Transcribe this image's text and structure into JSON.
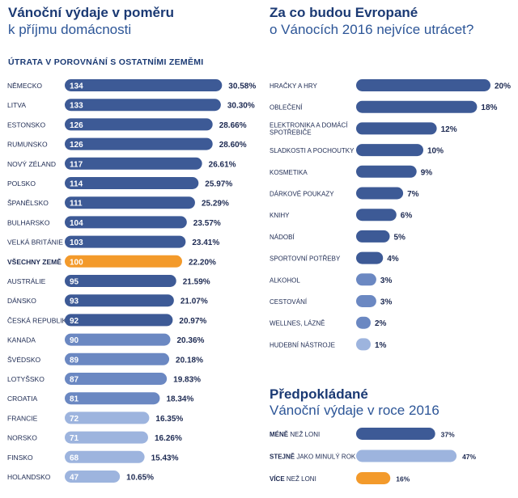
{
  "left": {
    "title_bold": "Vánoční výdaje v poměru",
    "title_light": "k příjmu domácnosti",
    "subheading": "ÚTRATA V POROVNÁNÍ S OSTATNÍMI ZEMĚMI"
  },
  "right_top": {
    "title_bold": "Za co budou Evropané",
    "title_light": "o Vánocích 2016 nejvíce utrácet?"
  },
  "right_bottom": {
    "title_bold": "Předpokládané",
    "title_light": "Vánoční výdaje v roce 2016"
  },
  "colors": {
    "dark_blue": "#3d5a96",
    "mid_blue": "#6b88c2",
    "light_blue": "#9db4de",
    "highlight": "#f39a2b",
    "title": "#1b3a74"
  },
  "chart_data": [
    {
      "type": "bar",
      "orientation": "horizontal",
      "title": "Vánoční výdaje v poměru k příjmu domácnosti",
      "subtitle": "ÚTRATA V POROVNÁNÍ S OSTATNÍMI ZEMĚMI",
      "categories": [
        "NĚMECKO",
        "LITVA",
        "ESTONSKO",
        "RUMUNSKO",
        "NOVÝ ZÉLAND",
        "POLSKO",
        "ŠPANĚLSKO",
        "BULHARSKO",
        "VELKÁ BRITÁNIE",
        "VŠECHNY ZEMĚ",
        "AUSTRÁLIE",
        "DÁNSKO",
        "ČESKÁ REPUBLIKA",
        "KANADA",
        "ŠVÉDSKO",
        "LOTYŠSKO",
        "CROATIA",
        "FRANCIE",
        "NORSKO",
        "FINSKO",
        "HOLANDSKO"
      ],
      "values": [
        134,
        133,
        126,
        126,
        117,
        114,
        111,
        104,
        103,
        100,
        95,
        93,
        92,
        90,
        89,
        87,
        81,
        72,
        71,
        68,
        47
      ],
      "percent_labels": [
        "30.58%",
        "30.30%",
        "28.66%",
        "28.60%",
        "26.61%",
        "25.97%",
        "25.29%",
        "23.57%",
        "23.41%",
        "22.20%",
        "21.59%",
        "21.07%",
        "20.97%",
        "20.36%",
        "20.18%",
        "19.83%",
        "18.34%",
        "16.35%",
        "16.26%",
        "15.43%",
        "10.65%"
      ],
      "highlight_category": "VŠECHNY ZEMĚ"
    },
    {
      "type": "bar",
      "orientation": "horizontal",
      "title": "Za co budou Evropané o Vánocích 2016 nejvíce utrácet?",
      "categories": [
        "HRAČKY A HRY",
        "OBLEČENÍ",
        "ELEKTRONIKA A DOMÁCÍ SPOTŘEBIČE",
        "SLADKOSTI A POCHOUTKY",
        "KOSMETIKA",
        "DÁRKOVÉ POUKAZY",
        "KNIHY",
        "NÁDOBÍ",
        "SPORTOVNÍ POTŘEBY",
        "ALKOHOL",
        "CESTOVÁNÍ",
        "WELLNES, LÁZNĚ",
        "HUDEBNÍ NÁSTROJE"
      ],
      "values": [
        20,
        18,
        12,
        10,
        9,
        7,
        6,
        5,
        4,
        3,
        3,
        2,
        1
      ],
      "value_labels": [
        "20%",
        "18%",
        "12%",
        "10%",
        "9%",
        "7%",
        "6%",
        "5%",
        "4%",
        "3%",
        "3%",
        "2%",
        "1%"
      ]
    },
    {
      "type": "bar",
      "orientation": "horizontal",
      "title": "Předpokládané Vánoční výdaje v roce 2016",
      "categories": [
        {
          "bold": "MÉNĚ",
          "rest": " NEŽ LONI"
        },
        {
          "bold": "STEJNĚ",
          "rest": " JAKO MINULÝ ROK"
        },
        {
          "bold": "VÍCE",
          "rest": " NEŽ LONI"
        }
      ],
      "values": [
        37,
        47,
        16
      ],
      "value_labels": [
        "37%",
        "47%",
        "16%"
      ]
    }
  ]
}
